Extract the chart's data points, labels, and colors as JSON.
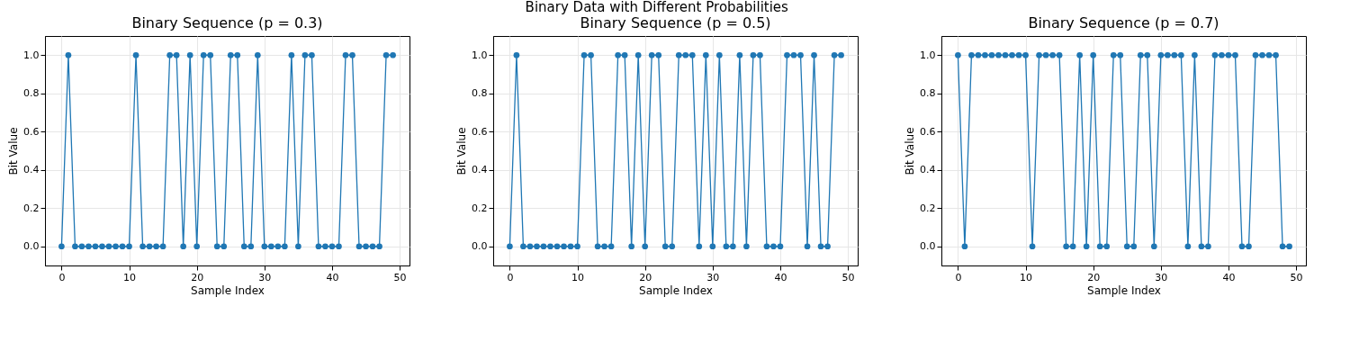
{
  "chart_data": [
    {
      "type": "line",
      "title": "Binary Sequence (p = 0.3)",
      "xlabel": "Sample Index",
      "ylabel": "Bit Value",
      "annotations": [
        "Binary Data with Different Probabilities"
      ],
      "x": [
        0,
        1,
        2,
        3,
        4,
        5,
        6,
        7,
        8,
        9,
        10,
        11,
        12,
        13,
        14,
        15,
        16,
        17,
        18,
        19,
        20,
        21,
        22,
        23,
        24,
        25,
        26,
        27,
        28,
        29,
        30,
        31,
        32,
        33,
        34,
        35,
        36,
        37,
        38,
        39,
        40,
        41,
        42,
        43,
        44,
        45,
        46,
        47,
        48,
        49
      ],
      "series": [
        {
          "color": "#1f77b4",
          "values": [
            0,
            1,
            0,
            0,
            0,
            0,
            0,
            0,
            0,
            0,
            0,
            1,
            0,
            0,
            0,
            0,
            1,
            1,
            0,
            1,
            0,
            1,
            1,
            0,
            0,
            1,
            1,
            0,
            0,
            1,
            0,
            0,
            0,
            0,
            1,
            0,
            1,
            1,
            0,
            0,
            0,
            0,
            1,
            1,
            0,
            0,
            0,
            0,
            1,
            1
          ]
        }
      ],
      "xlim": [
        -2.45,
        51.45
      ],
      "xticks": [
        0,
        10,
        20,
        30,
        40,
        50
      ],
      "ylim": [
        -0.1,
        1.1
      ],
      "yticks": [
        {
          "value": 0,
          "label": "0.0"
        },
        {
          "value": 0.2,
          "label": "0.2"
        },
        {
          "value": 0.4,
          "label": "0.4"
        },
        {
          "value": 0.6,
          "label": "0.6"
        },
        {
          "value": 0.8,
          "label": "0.8"
        },
        {
          "value": 1,
          "label": "1.0"
        }
      ],
      "grid": true,
      "marker": "circle",
      "line_style": "solid"
    },
    {
      "type": "line",
      "title": "Binary Sequence (p = 0.5)",
      "xlabel": "Sample Index",
      "ylabel": "Bit Value",
      "x": [
        0,
        1,
        2,
        3,
        4,
        5,
        6,
        7,
        8,
        9,
        10,
        11,
        12,
        13,
        14,
        15,
        16,
        17,
        18,
        19,
        20,
        21,
        22,
        23,
        24,
        25,
        26,
        27,
        28,
        29,
        30,
        31,
        32,
        33,
        34,
        35,
        36,
        37,
        38,
        39,
        40,
        41,
        42,
        43,
        44,
        45,
        46,
        47,
        48,
        49
      ],
      "series": [
        {
          "color": "#1f77b4",
          "values": [
            0,
            1,
            0,
            0,
            0,
            0,
            0,
            0,
            0,
            0,
            0,
            1,
            1,
            0,
            0,
            0,
            1,
            1,
            0,
            1,
            0,
            1,
            1,
            0,
            0,
            1,
            1,
            1,
            0,
            1,
            0,
            1,
            0,
            0,
            1,
            0,
            1,
            1,
            0,
            0,
            0,
            1,
            1,
            1,
            0,
            1,
            0,
            0,
            1,
            1
          ]
        }
      ],
      "xlim": [
        -2.45,
        51.45
      ],
      "xticks": [
        0,
        10,
        20,
        30,
        40,
        50
      ],
      "ylim": [
        -0.1,
        1.1
      ],
      "yticks": [
        {
          "value": 0,
          "label": "0.0"
        },
        {
          "value": 0.2,
          "label": "0.2"
        },
        {
          "value": 0.4,
          "label": "0.4"
        },
        {
          "value": 0.6,
          "label": "0.6"
        },
        {
          "value": 0.8,
          "label": "0.8"
        },
        {
          "value": 1,
          "label": "1.0"
        }
      ],
      "grid": true,
      "marker": "circle",
      "line_style": "solid"
    },
    {
      "type": "line",
      "title": "Binary Sequence (p = 0.7)",
      "xlabel": "Sample Index",
      "ylabel": "Bit Value",
      "x": [
        0,
        1,
        2,
        3,
        4,
        5,
        6,
        7,
        8,
        9,
        10,
        11,
        12,
        13,
        14,
        15,
        16,
        17,
        18,
        19,
        20,
        21,
        22,
        23,
        24,
        25,
        26,
        27,
        28,
        29,
        30,
        31,
        32,
        33,
        34,
        35,
        36,
        37,
        38,
        39,
        40,
        41,
        42,
        43,
        44,
        45,
        46,
        47,
        48,
        49
      ],
      "series": [
        {
          "color": "#1f77b4",
          "values": [
            1,
            0,
            1,
            1,
            1,
            1,
            1,
            1,
            1,
            1,
            1,
            0,
            1,
            1,
            1,
            1,
            0,
            0,
            1,
            0,
            1,
            0,
            0,
            1,
            1,
            0,
            0,
            1,
            1,
            0,
            1,
            1,
            1,
            1,
            0,
            1,
            0,
            0,
            1,
            1,
            1,
            1,
            0,
            0,
            1,
            1,
            1,
            1,
            0,
            0
          ]
        }
      ],
      "xlim": [
        -2.45,
        51.45
      ],
      "xticks": [
        0,
        10,
        20,
        30,
        40,
        50
      ],
      "ylim": [
        -0.1,
        1.1
      ],
      "yticks": [
        {
          "value": 0,
          "label": "0.0"
        },
        {
          "value": 0.2,
          "label": "0.2"
        },
        {
          "value": 0.4,
          "label": "0.4"
        },
        {
          "value": 0.6,
          "label": "0.6"
        },
        {
          "value": 0.8,
          "label": "0.8"
        },
        {
          "value": 1,
          "label": "1.0"
        }
      ],
      "grid": true,
      "marker": "circle",
      "line_style": "solid"
    }
  ]
}
